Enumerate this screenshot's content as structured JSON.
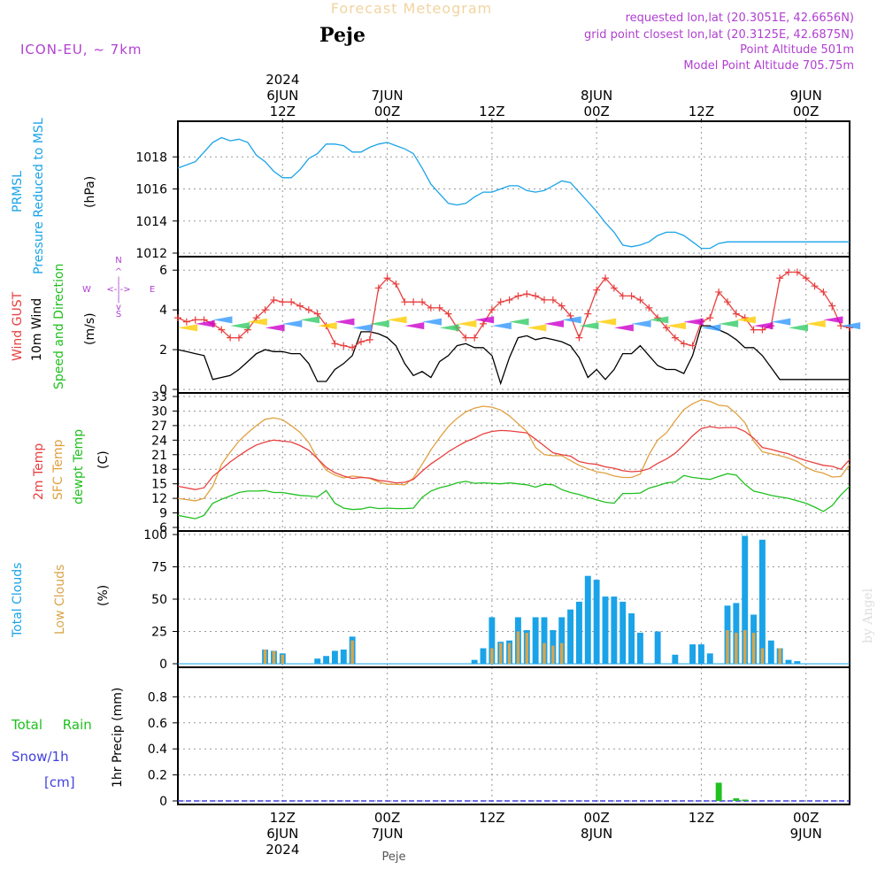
{
  "header": {
    "title": "Forecast Meteogram",
    "location": "Peje",
    "model": "ICON-EU, ~ 7km",
    "requested": "requested lon,lat (20.3051E, 42.6656N)",
    "grid_point": "grid point closest lon,lat (20.3125E, 42.6875N)",
    "point_altitude": "Point Altitude 501m",
    "model_altitude": "Model Point Altitude 705.75m"
  },
  "time_axis": {
    "top_labels": [
      {
        "t": 12,
        "lines": [
          "2024",
          "6JUN",
          "12Z"
        ]
      },
      {
        "t": 24,
        "lines": [
          "7JUN",
          "00Z"
        ]
      },
      {
        "t": 36,
        "lines": [
          "12Z"
        ]
      },
      {
        "t": 48,
        "lines": [
          "8JUN",
          "00Z"
        ]
      },
      {
        "t": 60,
        "lines": [
          "12Z"
        ]
      },
      {
        "t": 72,
        "lines": [
          "9JUN",
          "00Z"
        ]
      }
    ],
    "bottom_labels": [
      {
        "t": 12,
        "lines": [
          "12Z",
          "6JUN",
          "2024"
        ]
      },
      {
        "t": 24,
        "lines": [
          "00Z",
          "7JUN"
        ]
      },
      {
        "t": 36,
        "lines": [
          "12Z"
        ]
      },
      {
        "t": 48,
        "lines": [
          "00Z",
          "8JUN"
        ]
      },
      {
        "t": 60,
        "lines": [
          "12Z"
        ]
      },
      {
        "t": 72,
        "lines": [
          "00Z",
          "9JUN"
        ]
      }
    ],
    "footer": "Peje",
    "watermark": "by Angel"
  },
  "colors": {
    "pressure": "#1aa3e8",
    "gust": "#e84040",
    "wind": "#000000",
    "temp": "#e84040",
    "sfc_temp": "#e0a040",
    "dewpt": "#20c020",
    "total_clouds": "#1aa3e8",
    "low_clouds": "#d9a54a",
    "rain": "#20c020",
    "snow": "#4040e0",
    "purple": "#b040d0"
  },
  "chart_data": [
    {
      "type": "line",
      "panel": "pressure",
      "ylabel_lines": [
        "PRMSL",
        "Pressure Reduced to MSL",
        "(hPa)"
      ],
      "ylim": [
        1012,
        1020
      ],
      "yticks": [
        "1012",
        "1014",
        "1016",
        "1018"
      ],
      "ytick_values": [
        1012,
        1014,
        1016,
        1018
      ],
      "x": [
        0,
        2,
        3,
        4,
        5,
        6,
        7,
        8,
        9,
        10,
        11,
        12,
        13,
        14,
        15,
        16,
        17,
        18,
        19,
        20,
        21,
        22,
        23,
        24,
        25,
        26,
        27,
        28,
        29,
        30,
        31,
        32,
        33,
        34,
        35,
        36,
        37,
        38,
        39,
        40,
        41,
        42,
        43,
        44,
        45,
        46,
        47,
        48,
        49,
        50,
        51,
        52,
        53,
        54,
        55,
        56,
        57,
        58,
        59,
        60,
        61,
        62,
        63,
        64,
        65,
        66,
        67,
        68,
        69,
        70,
        71,
        72,
        73,
        74,
        75,
        76,
        77
      ],
      "series": [
        {
          "values": [
            1017.3,
            1017.7,
            1018.3,
            1018.9,
            1019.2,
            1019.0,
            1019.1,
            1018.9,
            1018.1,
            1017.7,
            1017.1,
            1016.7,
            1016.7,
            1017.2,
            1017.9,
            1018.2,
            1018.8,
            1018.8,
            1018.7,
            1018.3,
            1018.3,
            1018.6,
            1018.8,
            1018.9,
            1018.7,
            1018.5,
            1018.2,
            1017.3,
            1016.3,
            1015.7,
            1015.1,
            1015.0,
            1015.1,
            1015.5,
            1015.8,
            1015.8,
            1016.0,
            1016.2,
            1016.2,
            1015.9,
            1015.8,
            1015.9,
            1016.2,
            1016.5,
            1016.4,
            1015.8,
            1015.2,
            1014.6,
            1013.9,
            1013.3,
            1012.5,
            1012.4,
            1012.5,
            1012.7,
            1013.1,
            1013.3,
            1013.3,
            1013.1,
            1012.7,
            1012.3,
            1012.3,
            1012.6,
            1012.7,
            1012.7,
            1012.7,
            1012.7,
            1012.7,
            1012.7,
            1012.7,
            1012.7,
            1012.7,
            1012.7,
            1012.7,
            1012.7,
            1012.7,
            1012.7,
            1012.7
          ]
        }
      ]
    },
    {
      "type": "line",
      "panel": "wind",
      "ylabel_lines": [
        "Wind GUST",
        "10m Wind",
        "Speed and Direction",
        "(m/s)"
      ],
      "compass": {
        "n": "N",
        "s": "S",
        "w": "W",
        "e": "E"
      },
      "ylim": [
        0,
        6.5
      ],
      "yticks": [
        "0",
        "2",
        "4",
        "6"
      ],
      "ytick_values": [
        0,
        2,
        4,
        6
      ],
      "x": [
        0,
        1,
        2,
        3,
        4,
        5,
        6,
        7,
        8,
        9,
        10,
        11,
        12,
        13,
        14,
        15,
        16,
        17,
        18,
        19,
        20,
        21,
        22,
        23,
        24,
        25,
        26,
        27,
        28,
        29,
        30,
        31,
        32,
        33,
        34,
        35,
        36,
        37,
        38,
        39,
        40,
        41,
        42,
        43,
        44,
        45,
        46,
        47,
        48,
        49,
        50,
        51,
        52,
        53,
        54,
        55,
        56,
        57,
        58,
        59,
        60,
        61,
        62,
        63,
        64,
        65,
        66,
        67,
        68,
        69,
        70,
        71,
        72,
        73,
        74,
        75,
        76,
        77
      ],
      "series": [
        {
          "name": "Wind GUST",
          "values": [
            3.6,
            3.4,
            3.5,
            3.5,
            3.3,
            3.0,
            2.6,
            2.6,
            3.0,
            3.6,
            4.0,
            4.5,
            4.4,
            4.4,
            4.2,
            4.0,
            3.8,
            3.2,
            2.3,
            2.2,
            2.1,
            2.4,
            2.5,
            5.1,
            5.6,
            5.3,
            4.4,
            4.4,
            4.4,
            4.1,
            4.1,
            3.8,
            3.1,
            2.6,
            2.6,
            3.3,
            4.0,
            4.4,
            4.5,
            4.7,
            4.8,
            4.7,
            4.5,
            4.5,
            4.2,
            3.7,
            2.6,
            3.8,
            5.0,
            5.6,
            5.1,
            4.7,
            4.7,
            4.5,
            4.1,
            3.6,
            3.1,
            2.6,
            2.3,
            2.2,
            3.4,
            3.6,
            4.9,
            4.4,
            3.8,
            3.6,
            3.0,
            3.0,
            3.2,
            5.6,
            5.9,
            5.9,
            5.6,
            5.2,
            4.9,
            4.2,
            3.2,
            3.1
          ]
        },
        {
          "name": "10m Wind",
          "values": [
            2.0,
            1.9,
            1.8,
            1.7,
            0.5,
            0.6,
            0.7,
            1.0,
            1.4,
            1.8,
            2.0,
            1.9,
            1.9,
            1.8,
            1.8,
            1.3,
            0.4,
            0.4,
            1.0,
            1.3,
            1.7,
            2.9,
            2.9,
            2.8,
            2.6,
            2.2,
            1.3,
            0.7,
            0.9,
            0.6,
            1.4,
            1.7,
            2.2,
            2.3,
            2.1,
            2.1,
            1.7,
            0.3,
            1.6,
            2.6,
            2.7,
            2.5,
            2.6,
            2.5,
            2.4,
            2.2,
            1.6,
            0.6,
            1.0,
            0.5,
            1.0,
            1.8,
            1.8,
            2.2,
            1.7,
            1.2,
            1.0,
            1.0,
            0.8,
            1.7,
            3.2,
            3.2,
            3.0,
            2.8,
            2.5,
            2.1,
            2.1,
            1.7,
            1.1,
            0.5,
            0.5,
            0.5,
            0.5,
            0.5,
            0.5,
            0.5,
            0.5,
            0.5
          ]
        }
      ]
    },
    {
      "type": "line",
      "panel": "temperature",
      "ylabel_lines": [
        "2m Temp",
        "SFC Temp",
        "dewpt Temp",
        "(C)"
      ],
      "ylim": [
        6,
        33
      ],
      "yticks": [
        "6",
        "9",
        "12",
        "15",
        "18",
        "21",
        "24",
        "27",
        "30",
        "33"
      ],
      "ytick_values": [
        6,
        9,
        12,
        15,
        18,
        21,
        24,
        27,
        30,
        33
      ],
      "x": [
        0,
        2,
        3,
        4,
        5,
        6,
        7,
        8,
        9,
        10,
        11,
        12,
        13,
        14,
        15,
        16,
        17,
        18,
        19,
        20,
        21,
        22,
        23,
        24,
        25,
        26,
        27,
        28,
        29,
        30,
        31,
        32,
        33,
        34,
        35,
        36,
        37,
        38,
        39,
        40,
        41,
        42,
        43,
        44,
        45,
        46,
        47,
        48,
        49,
        50,
        51,
        52,
        53,
        54,
        55,
        56,
        57,
        58,
        59,
        60,
        61,
        62,
        63,
        64,
        65,
        66,
        67,
        68,
        69,
        70,
        71,
        72,
        73,
        74,
        75,
        76,
        77
      ],
      "series": [
        {
          "name": "2m Temp",
          "values": [
            14.5,
            13.8,
            14.2,
            16.5,
            18.0,
            19.5,
            20.8,
            22.0,
            23.0,
            23.6,
            24.0,
            23.8,
            23.6,
            22.9,
            21.9,
            20.2,
            18.4,
            17.3,
            16.6,
            16.1,
            16.3,
            16.2,
            15.7,
            15.5,
            15.2,
            15.3,
            15.9,
            17.6,
            19.1,
            20.3,
            21.6,
            22.7,
            23.7,
            24.4,
            25.3,
            25.8,
            26.0,
            25.9,
            25.7,
            25.5,
            24.2,
            22.8,
            21.4,
            21.0,
            20.7,
            19.6,
            19.2,
            19.0,
            18.5,
            18.2,
            17.7,
            17.5,
            17.6,
            18.1,
            19.2,
            20.1,
            21.3,
            23.0,
            24.9,
            26.4,
            26.8,
            26.5,
            26.6,
            26.6,
            25.8,
            24.4,
            22.5,
            22.1,
            21.6,
            21.2,
            20.4,
            19.8,
            19.3,
            18.8,
            18.6,
            18.0,
            20.0
          ]
        },
        {
          "name": "SFC Temp",
          "values": [
            12.0,
            11.5,
            12.0,
            14.5,
            19.0,
            21.5,
            23.8,
            25.5,
            27.0,
            28.3,
            28.6,
            28.2,
            27.0,
            25.6,
            23.5,
            20.2,
            17.8,
            16.8,
            16.2,
            16.6,
            16.4,
            16.1,
            15.4,
            14.9,
            14.9,
            14.8,
            16.2,
            19.0,
            22.0,
            24.5,
            26.8,
            28.5,
            29.8,
            30.6,
            31.0,
            30.8,
            30.2,
            29.0,
            27.4,
            25.8,
            22.5,
            21.0,
            20.8,
            20.8,
            19.8,
            18.8,
            18.1,
            17.5,
            17.2,
            16.6,
            16.3,
            16.3,
            17.0,
            21.0,
            24.0,
            25.5,
            28.0,
            30.3,
            31.5,
            32.3,
            32.0,
            31.2,
            31.0,
            29.5,
            27.6,
            23.8,
            21.6,
            21.2,
            20.8,
            20.3,
            19.6,
            18.4,
            17.6,
            17.2,
            16.4,
            16.5,
            19.0
          ]
        },
        {
          "name": "dewpt Temp",
          "values": [
            8.5,
            7.8,
            8.5,
            11.0,
            11.8,
            12.5,
            13.2,
            13.5,
            13.5,
            13.6,
            13.2,
            13.2,
            12.9,
            12.6,
            12.5,
            12.3,
            13.6,
            11.0,
            10.0,
            9.7,
            9.8,
            10.2,
            9.9,
            10.0,
            9.9,
            9.9,
            10.0,
            12.2,
            13.5,
            14.2,
            14.6,
            15.2,
            15.5,
            15.1,
            15.2,
            15.1,
            15.0,
            15.2,
            15.0,
            14.8,
            14.3,
            14.9,
            14.8,
            13.8,
            13.2,
            12.8,
            12.2,
            11.7,
            11.2,
            11.0,
            13.0,
            13.0,
            13.1,
            14.1,
            14.6,
            15.2,
            15.4,
            16.7,
            16.3,
            16.1,
            15.9,
            16.5,
            17.1,
            16.8,
            14.9,
            13.5,
            13.1,
            12.6,
            12.3,
            12.0,
            11.5,
            11.0,
            10.2,
            9.3,
            10.5,
            12.7,
            14.5
          ]
        }
      ]
    },
    {
      "type": "bar",
      "panel": "clouds",
      "ylabel_lines": [
        "Total Clouds",
        "Low Clouds",
        "(%)"
      ],
      "ylim": [
        0,
        100
      ],
      "yticks": [
        "0",
        "25",
        "50",
        "75",
        "100"
      ],
      "ytick_values": [
        0,
        25,
        50,
        75,
        100
      ],
      "x": [
        10,
        11,
        12,
        16,
        17,
        18,
        19,
        20,
        34,
        35,
        36,
        37,
        38,
        39,
        40,
        41,
        42,
        43,
        44,
        45,
        46,
        47,
        48,
        49,
        50,
        51,
        52,
        53,
        54,
        55,
        57,
        59,
        60,
        61,
        62,
        63,
        64,
        65,
        66,
        67,
        68,
        69,
        70,
        71
      ],
      "series": [
        {
          "name": "Total Clouds",
          "values": [
            11,
            10,
            8,
            4,
            6,
            10,
            11,
            21,
            3,
            12,
            36,
            17,
            18,
            36,
            26,
            36,
            36,
            26,
            36,
            42,
            48,
            68,
            65,
            52,
            52,
            48,
            39,
            24,
            0,
            25,
            7,
            15,
            15,
            8,
            0,
            45,
            47,
            99,
            38,
            96,
            18,
            12,
            3,
            2
          ]
        },
        {
          "name": "Low Clouds",
          "values": [
            11,
            10,
            7,
            0,
            0,
            0,
            0,
            18,
            0,
            0,
            12,
            16,
            16,
            25,
            24,
            0,
            16,
            14,
            16,
            0,
            0,
            0,
            0,
            0,
            0,
            0,
            0,
            0,
            0,
            0,
            0,
            0,
            0,
            0,
            0,
            26,
            24,
            26,
            24,
            12,
            0,
            12,
            0,
            0
          ]
        }
      ]
    },
    {
      "type": "bar",
      "panel": "precip",
      "ylabel_lines": [
        "1hr Precip (mm)"
      ],
      "legend_lines": [
        "Total Rain",
        "Snow/1h",
        "[cm]"
      ],
      "ylim": [
        0,
        1.0
      ],
      "yticks": [
        "0",
        "0.2",
        "0.4",
        "0.6",
        "0.8"
      ],
      "ytick_values": [
        0,
        0.2,
        0.4,
        0.6,
        0.8
      ],
      "x": [
        62,
        64,
        65
      ],
      "series": [
        {
          "name": "Total Rain",
          "values": [
            0.14,
            0.02,
            0.01
          ]
        }
      ]
    }
  ]
}
